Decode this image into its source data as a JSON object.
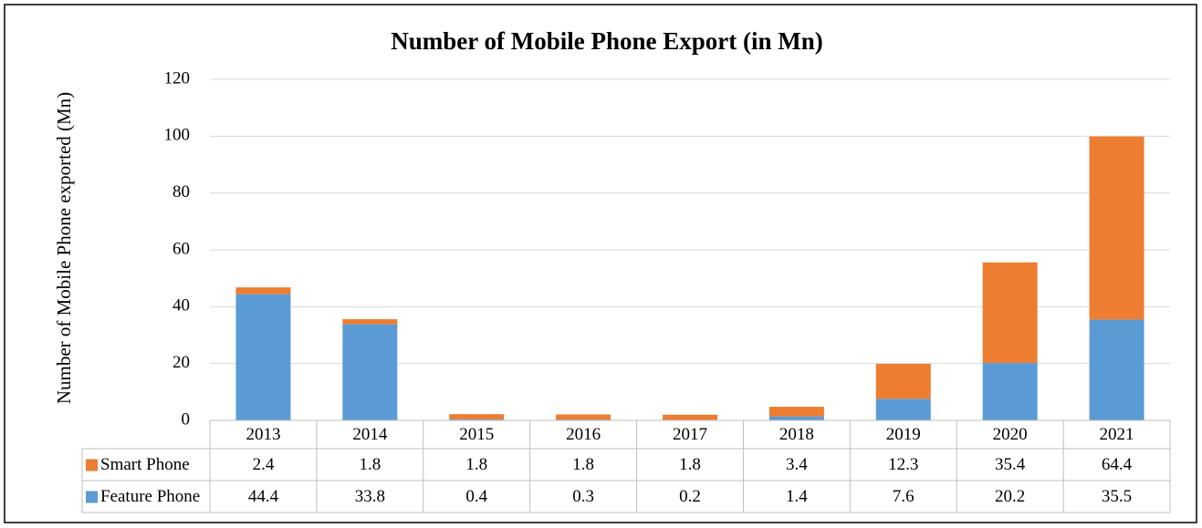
{
  "chart_data": {
    "type": "stacked_bar",
    "title": "Number of Mobile Phone Export (in Mn)",
    "y_label": "Number of Mobile Phone exported (Mn)",
    "categories": [
      "2013",
      "2014",
      "2015",
      "2016",
      "2017",
      "2018",
      "2019",
      "2020",
      "2021"
    ],
    "series": [
      {
        "name": "Smart Phone",
        "color": "#ed7d31",
        "values": [
          2.4,
          1.8,
          1.8,
          1.8,
          1.8,
          3.4,
          12.3,
          35.4,
          64.4
        ]
      },
      {
        "name": "Feature Phone",
        "color": "#5b9bd5",
        "values": [
          44.4,
          33.8,
          0.4,
          0.3,
          0.2,
          1.4,
          7.6,
          20.2,
          35.5
        ]
      }
    ],
    "ylim": [
      0,
      120
    ],
    "yticks": [
      0,
      20,
      40,
      60,
      80,
      100,
      120
    ],
    "grid": true
  }
}
